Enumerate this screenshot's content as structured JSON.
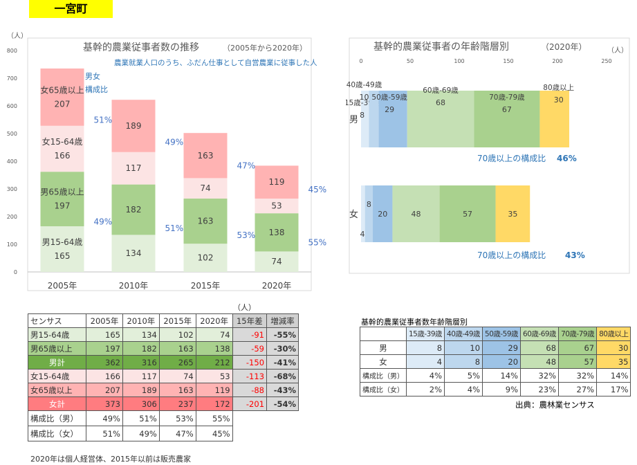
{
  "header": {
    "town": "一宮町"
  },
  "left_chart": {
    "title": "基幹的農業従事者数の推移",
    "title_sub": "（2005年から2020年）",
    "subtitle": "農業就業人口のうち、ふだん仕事として自営農業に従事した人",
    "unit": "（人）",
    "composition_label_1": "男女",
    "composition_label_2": "構成比",
    "yticks": [
      "800",
      "700",
      "600",
      "500",
      "400",
      "300",
      "200",
      "100",
      "0"
    ]
  },
  "right_chart": {
    "title": "基幹的農業従事者の年齢階層別",
    "title_sub": "（2020年）",
    "unit": "（人）",
    "xticks": [
      "0",
      "50",
      "100",
      "150",
      "200",
      "250"
    ],
    "male_ratio_label": "70歳以上の構成比",
    "male_ratio_value": "46%",
    "female_ratio_label": "70歳以上の構成比",
    "female_ratio_value": "43%"
  },
  "chart_data": [
    {
      "type": "bar",
      "stacked": true,
      "title": "基幹的農業従事者数の推移（2005年から2020年）",
      "categories": [
        "2005年",
        "2010年",
        "2015年",
        "2020年"
      ],
      "series": [
        {
          "name": "男15-64歳",
          "values": [
            165,
            134,
            102,
            74
          ],
          "color": "#e2efda"
        },
        {
          "name": "男65歳以上",
          "values": [
            197,
            182,
            163,
            138
          ],
          "color": "#a9d18e"
        },
        {
          "name": "女15-64歳",
          "values": [
            166,
            117,
            74,
            53
          ],
          "color": "#fce4e4"
        },
        {
          "name": "女65歳以上",
          "values": [
            207,
            189,
            163,
            119
          ],
          "color": "#ffb3b3"
        }
      ],
      "male_share": [
        "49%",
        "51%",
        "53%",
        "55%"
      ],
      "female_share": [
        "51%",
        "49%",
        "47%",
        "45%"
      ],
      "ylim": [
        0,
        800
      ]
    },
    {
      "type": "bar",
      "orientation": "horizontal",
      "stacked": true,
      "title": "基幹的農業従事者の年齢階層別（2020年）",
      "categories": [
        "男",
        "女"
      ],
      "series": [
        {
          "name": "15歳-39歳",
          "values": [
            8,
            4
          ],
          "color": "#ddebf7"
        },
        {
          "name": "40歳-49歳",
          "values": [
            10,
            8
          ],
          "color": "#bdd7ee"
        },
        {
          "name": "50歳-59歳",
          "values": [
            29,
            20
          ],
          "color": "#9dc3e6"
        },
        {
          "name": "60歳-69歳",
          "values": [
            68,
            48
          ],
          "color": "#c5e0b4"
        },
        {
          "name": "70歳-79歳",
          "values": [
            67,
            57
          ],
          "color": "#a9d18e"
        },
        {
          "name": "80歳以上",
          "values": [
            30,
            35
          ],
          "color": "#ffd966"
        }
      ],
      "xlim": [
        0,
        250
      ]
    }
  ],
  "table1": {
    "unit": "（人）",
    "headers": [
      "センサス",
      "2005年",
      "2010年",
      "2015年",
      "2020年",
      "15年差",
      "増減率"
    ],
    "rows": [
      {
        "cells": [
          "男15-64歳",
          "165",
          "134",
          "102",
          "74",
          "-91",
          "-55%"
        ],
        "bg": "#e2efda"
      },
      {
        "cells": [
          "男65歳以上",
          "197",
          "182",
          "163",
          "138",
          "-59",
          "-30%"
        ],
        "bg": "#a9d18e"
      },
      {
        "cells": [
          "男計",
          "362",
          "316",
          "265",
          "212",
          "-150",
          "-41%"
        ],
        "bg": "#70ad47"
      },
      {
        "cells": [
          "女15-64歳",
          "166",
          "117",
          "74",
          "53",
          "-113",
          "-68%"
        ],
        "bg": "#fce4e4"
      },
      {
        "cells": [
          "女65歳以上",
          "207",
          "189",
          "163",
          "119",
          "-88",
          "-43%"
        ],
        "bg": "#ffb3b3"
      },
      {
        "cells": [
          "女計",
          "373",
          "306",
          "237",
          "172",
          "-201",
          "-54%"
        ],
        "bg": "#ff7c80"
      }
    ],
    "ratio_rows": [
      [
        "構成比（男）",
        "49%",
        "51%",
        "53%",
        "55%"
      ],
      [
        "構成比（女）",
        "51%",
        "49%",
        "47%",
        "45%"
      ]
    ]
  },
  "table2": {
    "title": "基幹的農業従事者数年齢階層別",
    "headers": [
      "",
      "15歳-39歳",
      "40歳-49歳",
      "50歳-59歳",
      "60歳-69歳",
      "70歳-79歳",
      "80歳以上"
    ],
    "rows": [
      [
        "男",
        "8",
        "10",
        "29",
        "68",
        "67",
        "30"
      ],
      [
        "女",
        "4",
        "8",
        "20",
        "48",
        "57",
        "35"
      ],
      [
        "構成比（男）",
        "4%",
        "5%",
        "14%",
        "32%",
        "32%",
        "14%"
      ],
      [
        "構成比（女）",
        "2%",
        "4%",
        "9%",
        "23%",
        "27%",
        "17%"
      ]
    ],
    "source": "出典：農林業センサス"
  },
  "footnote": "2020年は個人経営体、2015年以前は販売農家"
}
